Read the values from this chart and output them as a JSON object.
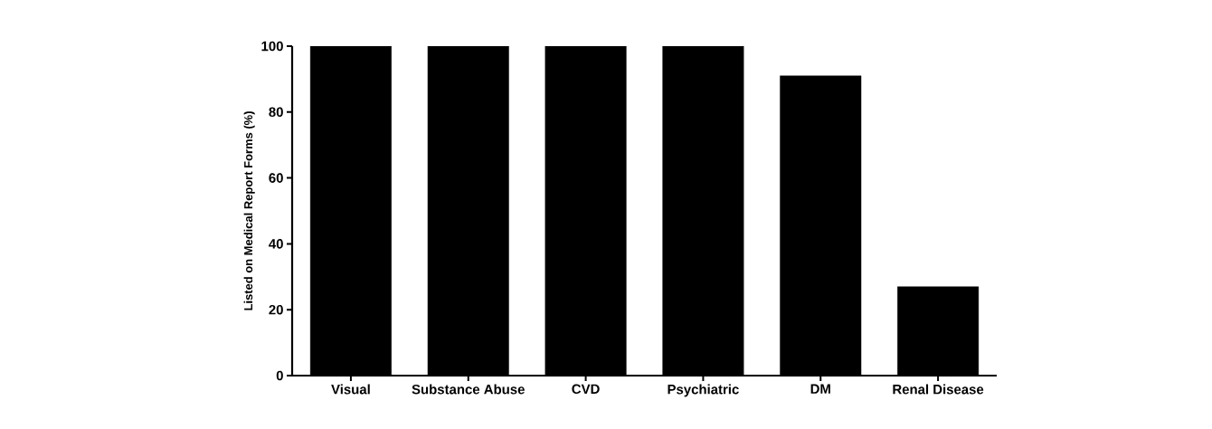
{
  "chart_data": {
    "type": "bar",
    "ylabel": "Listed on Medical Report Forms (%)",
    "categories": [
      "Visual",
      "Substance Abuse",
      "CVD",
      "Psychiatric",
      "DM",
      "Renal Disease"
    ],
    "values": [
      100,
      100,
      100,
      100,
      91,
      27
    ],
    "color": "#000000",
    "ylim": [
      0,
      100
    ],
    "yticks": [
      0,
      20,
      40,
      60,
      80,
      100
    ],
    "grid": false
  }
}
